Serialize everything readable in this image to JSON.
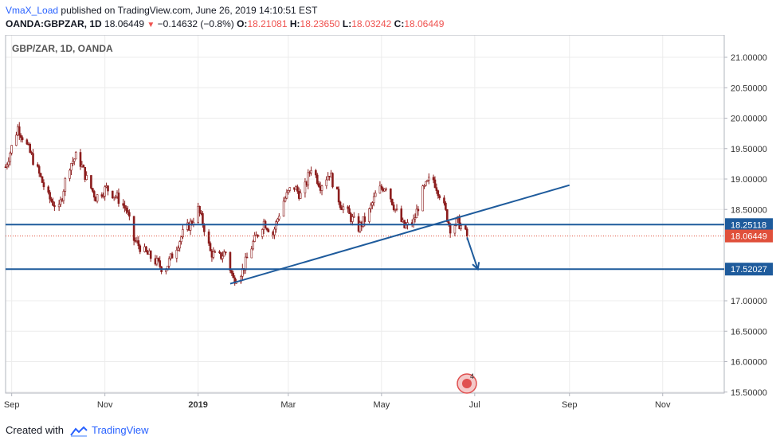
{
  "header": {
    "author": "VmaX_Load",
    "published_text": "published on TradingView.com, June 26, 2019 14:10:51 EST",
    "symbol": "OANDA:GBPZAR, 1D",
    "last": "18.06449",
    "change": "−0.14632 (−0.8%)",
    "o_label": "O:",
    "o_value": "18.21081",
    "h_label": "H:",
    "h_value": "18.23650",
    "l_label": "L:",
    "l_value": "18.03242",
    "c_label": "C:",
    "c_value": "18.06449"
  },
  "chart_title": "GBP/ZAR, 1D, OANDA",
  "footer": {
    "created_with": "Created with",
    "brand": "TradingView"
  },
  "colors": {
    "up": "#26a69a",
    "down": "#ef5350",
    "candle": "#8b1c1c",
    "line": "#1e5b9c",
    "label_bg": "#1e5b9c",
    "last_bg": "#e0503b",
    "grid": "#ececec"
  },
  "chart_data": {
    "type": "candlestick",
    "title": "GBP/ZAR, 1D, OANDA",
    "y_ticks": [
      "21.00000",
      "20.50000",
      "20.00000",
      "19.50000",
      "19.00000",
      "18.50000",
      "17.00000",
      "16.50000",
      "16.00000",
      "15.50000"
    ],
    "ylim": [
      15.5,
      21.2
    ],
    "x_ticks": [
      "Sep",
      "Nov",
      "2019",
      "Mar",
      "May",
      "Jul",
      "Sep",
      "Nov"
    ],
    "grid": true,
    "price_labels": [
      {
        "text": "18.25118",
        "value": 18.25118,
        "style": "level"
      },
      {
        "text": "18.06449",
        "value": 18.06449,
        "style": "last"
      },
      {
        "text": "17.52027",
        "value": 17.52027,
        "style": "level"
      }
    ],
    "horizontal_levels": [
      18.25118,
      17.52027
    ],
    "last_price": 18.06449,
    "trendline": {
      "start": {
        "date": "2019-01-22",
        "value": 17.28
      },
      "end": {
        "date": "2019-09-01",
        "value": 18.9
      }
    },
    "arrow": {
      "start": {
        "date": "2019-06-26",
        "value": 18.04
      },
      "end": {
        "date": "2019-07-03",
        "value": 17.52
      }
    },
    "events_badge": "4",
    "price_path": [
      [
        "2018-08-28",
        19.2
      ],
      [
        "2018-09-05",
        19.85
      ],
      [
        "2018-09-10",
        19.6
      ],
      [
        "2018-09-17",
        19.2
      ],
      [
        "2018-09-25",
        18.7
      ],
      [
        "2018-10-02",
        18.5
      ],
      [
        "2018-10-08",
        19.2
      ],
      [
        "2018-10-14",
        19.4
      ],
      [
        "2018-10-20",
        19.0
      ],
      [
        "2018-10-26",
        18.7
      ],
      [
        "2018-11-02",
        18.85
      ],
      [
        "2018-11-09",
        18.7
      ],
      [
        "2018-11-15",
        18.5
      ],
      [
        "2018-11-20",
        18.0
      ],
      [
        "2018-11-27",
        17.8
      ],
      [
        "2018-12-04",
        17.65
      ],
      [
        "2018-12-10",
        17.5
      ],
      [
        "2018-12-16",
        17.8
      ],
      [
        "2018-12-22",
        18.1
      ],
      [
        "2018-12-28",
        18.3
      ],
      [
        "2019-01-01",
        18.5
      ],
      [
        "2019-01-05",
        18.2
      ],
      [
        "2019-01-09",
        17.8
      ],
      [
        "2019-01-14",
        17.7
      ],
      [
        "2019-01-19",
        17.8
      ],
      [
        "2019-01-24",
        17.35
      ],
      [
        "2019-01-30",
        17.5
      ],
      [
        "2019-02-06",
        17.95
      ],
      [
        "2019-02-13",
        18.3
      ],
      [
        "2019-02-19",
        18.1
      ],
      [
        "2019-02-25",
        18.6
      ],
      [
        "2019-03-04",
        18.9
      ],
      [
        "2019-03-10",
        18.7
      ],
      [
        "2019-03-16",
        19.2
      ],
      [
        "2019-03-22",
        18.9
      ],
      [
        "2019-03-28",
        19.1
      ],
      [
        "2019-04-04",
        18.6
      ],
      [
        "2019-04-10",
        18.4
      ],
      [
        "2019-04-16",
        18.2
      ],
      [
        "2019-04-22",
        18.4
      ],
      [
        "2019-04-28",
        18.8
      ],
      [
        "2019-05-04",
        18.9
      ],
      [
        "2019-05-10",
        18.5
      ],
      [
        "2019-05-16",
        18.2
      ],
      [
        "2019-05-22",
        18.3
      ],
      [
        "2019-05-28",
        18.8
      ],
      [
        "2019-06-03",
        19.05
      ],
      [
        "2019-06-09",
        18.7
      ],
      [
        "2019-06-15",
        18.2
      ],
      [
        "2019-06-20",
        18.3
      ],
      [
        "2019-06-26",
        18.06
      ]
    ]
  }
}
